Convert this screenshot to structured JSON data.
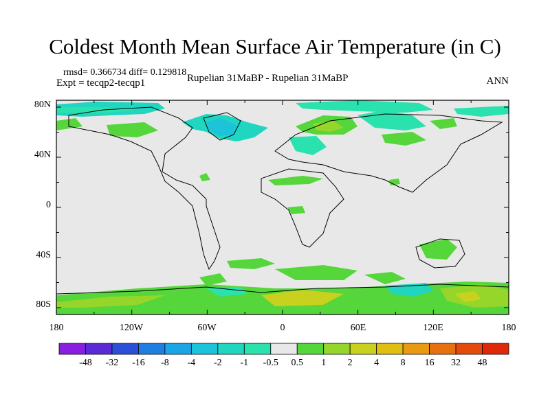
{
  "title": "Coldest Month Mean Surface Air Temperature (in C)",
  "stats": "rmsd= 0.366734 diff= 0.129818",
  "experiment": "Expt = tecqp2-tecqp1",
  "comparison": "Rupelian  31MaBP - Rupelian  31MaBP",
  "season": "ANN",
  "lon_ticks": [
    "180",
    "120W",
    "60W",
    "0",
    "60E",
    "120E",
    "180"
  ],
  "lat_ticks": [
    "80N",
    "40N",
    "0",
    "40S",
    "80S"
  ],
  "colorbar": {
    "labels": [
      "-48",
      "-32",
      "-16",
      "-8",
      "-4",
      "-2",
      "-1",
      "-0.5",
      "0.5",
      "1",
      "2",
      "4",
      "8",
      "16",
      "32",
      "48"
    ],
    "colors": [
      "#8a1ee0",
      "#5a2ad6",
      "#2b4fd8",
      "#1e7fe0",
      "#1aa6e6",
      "#1cc4da",
      "#20d6c0",
      "#2ae2ae",
      "#e8e8e8",
      "#55d63a",
      "#96d62a",
      "#c8d21e",
      "#e0be14",
      "#e89a10",
      "#e8700e",
      "#e44a0c",
      "#e0280a"
    ]
  },
  "map": {
    "background": "#e8e8e8"
  }
}
